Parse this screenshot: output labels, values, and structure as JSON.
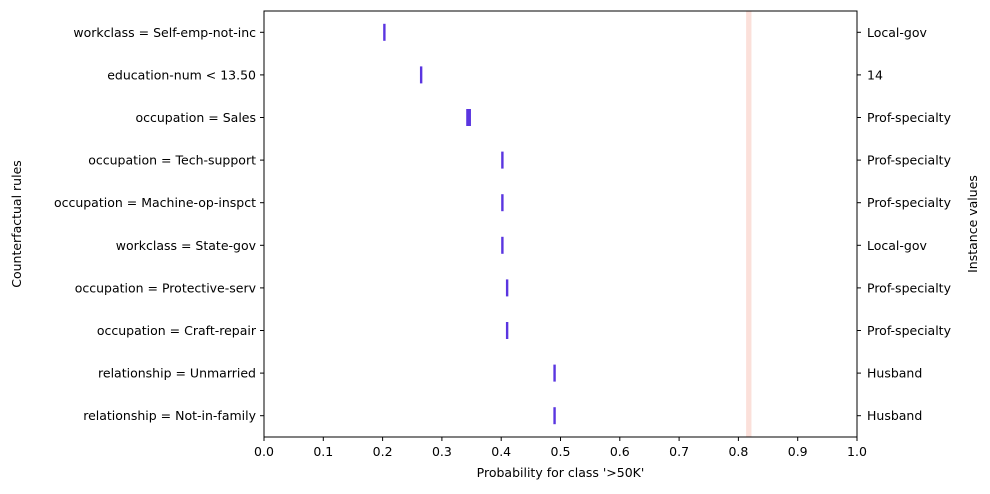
{
  "chart_data": {
    "type": "interval",
    "xlabel": "Probability for class '>50K'",
    "ylabel_left": "Counterfactual rules",
    "ylabel_right": "Instance values",
    "xlim": [
      0.0,
      1.0
    ],
    "xticks": [
      "0.0",
      "0.1",
      "0.2",
      "0.3",
      "0.4",
      "0.5",
      "0.6",
      "0.7",
      "0.8",
      "0.9",
      "1.0"
    ],
    "reference_band": {
      "low": 0.813,
      "high": 0.822
    },
    "rules": [
      {
        "rule": "workclass = Self-emp-not-inc",
        "instance_value": "Local-gov",
        "low": 0.201,
        "high": 0.205
      },
      {
        "rule": "education-num < 13.50",
        "instance_value": "14",
        "low": 0.263,
        "high": 0.267
      },
      {
        "rule": "occupation = Sales",
        "instance_value": "Prof-specialty",
        "low": 0.341,
        "high": 0.349
      },
      {
        "rule": "occupation = Tech-support",
        "instance_value": "Prof-specialty",
        "low": 0.4,
        "high": 0.404
      },
      {
        "rule": "occupation = Machine-op-inspct",
        "instance_value": "Prof-specialty",
        "low": 0.4,
        "high": 0.404
      },
      {
        "rule": "workclass = State-gov",
        "instance_value": "Local-gov",
        "low": 0.4,
        "high": 0.404
      },
      {
        "rule": "occupation = Protective-serv",
        "instance_value": "Prof-specialty",
        "low": 0.408,
        "high": 0.412
      },
      {
        "rule": "occupation = Craft-repair",
        "instance_value": "Prof-specialty",
        "low": 0.408,
        "high": 0.412
      },
      {
        "rule": "relationship = Unmarried",
        "instance_value": "Husband",
        "low": 0.488,
        "high": 0.492
      },
      {
        "rule": "relationship = Not-in-family",
        "instance_value": "Husband",
        "low": 0.488,
        "high": 0.492
      }
    ],
    "colors": {
      "interval": "#5a35e0",
      "reference_band": "#fbe0da",
      "axes": "#000000"
    },
    "grid": false
  }
}
